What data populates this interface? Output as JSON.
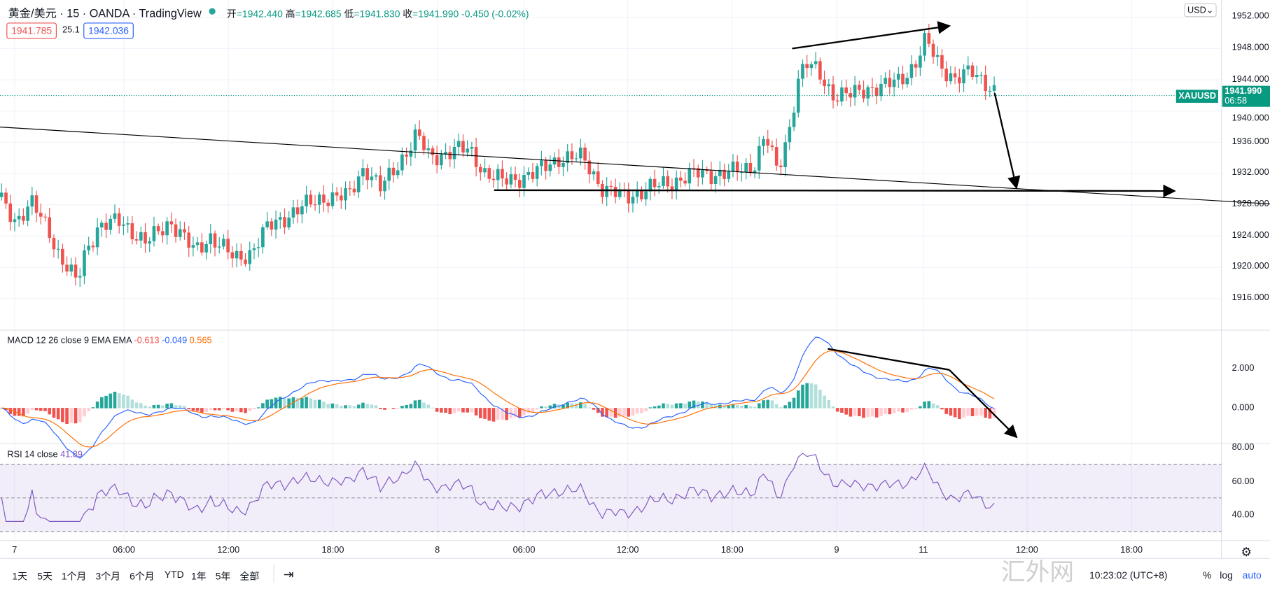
{
  "header": {
    "symbol": "黄金/美元",
    "interval": "15",
    "broker": "OANDA",
    "source": "TradingView",
    "ohlc": {
      "open_label": "开",
      "open": "=1942.440",
      "high_label": "高",
      "high": "=1942.685",
      "low_label": "低",
      "low": "=1941.830",
      "close_label": "收",
      "close": "=1941.990",
      "change": "-0.450 (-0.02%)"
    },
    "bid": "1941.785",
    "spread": "25.1",
    "ask": "1942.036"
  },
  "price_axis": {
    "currency": "USD",
    "ticks": [
      "1952.000",
      "1948.000",
      "1944.000",
      "1940.000",
      "1936.000",
      "1932.000",
      "1928.000",
      "1924.000",
      "1920.000",
      "1916.000"
    ],
    "last_symbol": "XAUUSD",
    "last_price": "1941.990",
    "countdown": "06:58"
  },
  "macd": {
    "label": "MACD 12 26 close 9 EMA EMA",
    "v1": "-0.613",
    "v2": "-0.049",
    "v3": "0.565",
    "ticks": [
      "2.000",
      "0.000"
    ]
  },
  "rsi": {
    "label": "RSI 14 close",
    "value": "41.89",
    "ticks": [
      "80.00",
      "60.00",
      "40.00"
    ]
  },
  "time_axis": [
    "7",
    "06:00",
    "12:00",
    "18:00",
    "8",
    "06:00",
    "12:00",
    "18:00",
    "9",
    "11",
    "12:00",
    "18:00"
  ],
  "toolbar": {
    "ranges": [
      "1天",
      "5天",
      "1个月",
      "3个月",
      "6个月",
      "YTD",
      "1年",
      "5年",
      "全部"
    ],
    "clock": "10:23:02 (UTC+8)",
    "percent": "%",
    "log": "log",
    "auto": "auto"
  },
  "watermark": "汇外网",
  "colors": {
    "up": "#26a69a",
    "down": "#ef5350",
    "macd": "#2962ff",
    "signal": "#ff6d00",
    "rsi": "#7e57c2"
  },
  "chart_data": {
    "type": "candlestick",
    "price_anchors": [
      [
        0,
        1929
      ],
      [
        20,
        1926
      ],
      [
        40,
        1928
      ],
      [
        60,
        1925
      ],
      [
        75,
        1921
      ],
      [
        95,
        1918
      ],
      [
        105,
        1922
      ],
      [
        120,
        1925
      ],
      [
        150,
        1926
      ],
      [
        180,
        1923
      ],
      [
        210,
        1926
      ],
      [
        240,
        1922
      ],
      [
        260,
        1924
      ],
      [
        290,
        1921
      ],
      [
        310,
        1922
      ],
      [
        330,
        1925
      ],
      [
        360,
        1927
      ],
      [
        400,
        1929
      ],
      [
        430,
        1929
      ],
      [
        450,
        1933
      ],
      [
        470,
        1930
      ],
      [
        490,
        1933
      ],
      [
        515,
        1937
      ],
      [
        530,
        1934
      ],
      [
        560,
        1935
      ],
      [
        580,
        1935
      ],
      [
        600,
        1932
      ],
      [
        620,
        1931
      ],
      [
        660,
        1932
      ],
      [
        690,
        1934
      ],
      [
        720,
        1934
      ],
      [
        745,
        1930
      ],
      [
        770,
        1929
      ],
      [
        800,
        1930
      ],
      [
        830,
        1931
      ],
      [
        860,
        1932
      ],
      [
        900,
        1932
      ],
      [
        930,
        1933
      ],
      [
        945,
        1937
      ],
      [
        960,
        1932
      ],
      [
        975,
        1938
      ],
      [
        985,
        1944
      ],
      [
        995,
        1946
      ],
      [
        1010,
        1945
      ],
      [
        1030,
        1942
      ],
      [
        1050,
        1942
      ],
      [
        1070,
        1943
      ],
      [
        1090,
        1943
      ],
      [
        1110,
        1944
      ],
      [
        1130,
        1946
      ],
      [
        1143,
        1949
      ],
      [
        1160,
        1946
      ],
      [
        1180,
        1944
      ],
      [
        1200,
        1945
      ],
      [
        1215,
        1944
      ],
      [
        1232,
        1942
      ]
    ]
  }
}
